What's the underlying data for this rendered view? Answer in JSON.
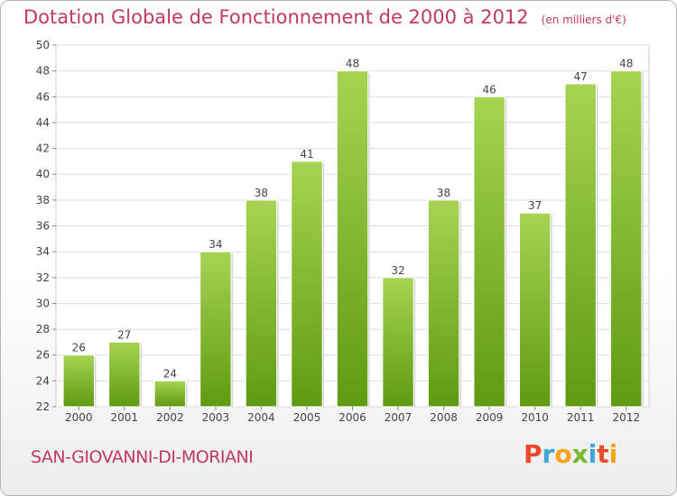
{
  "header": {
    "title": "Dotation Globale de Fonctionnement de 2000 à 2012",
    "unit": "(en milliers d'€)"
  },
  "footer": {
    "commune": "SAN-GIOVANNI-DI-MORIANI",
    "logo_letters": [
      "P",
      "r",
      "o",
      "x",
      "i",
      "t",
      "i"
    ],
    "logo_colors": [
      "#e84b2a",
      "#3ea7d8",
      "#f2a51a",
      "#76b82a",
      "#3ea7d8",
      "#e84b2a",
      "#f2a51a"
    ]
  },
  "colors": {
    "bar_light": "#a6d452",
    "bar_dark": "#5f9a12",
    "accent": "#c0395f",
    "grid": "#dddddd"
  },
  "chart_data": {
    "type": "bar",
    "title": "Dotation Globale de Fonctionnement de 2000 à 2012",
    "subtitle": "(en milliers d'€)",
    "categories": [
      "2000",
      "2001",
      "2002",
      "2003",
      "2004",
      "2005",
      "2006",
      "2007",
      "2008",
      "2009",
      "2010",
      "2011",
      "2012"
    ],
    "values": [
      26,
      27,
      24,
      34,
      38,
      41,
      48,
      32,
      38,
      46,
      37,
      47,
      48
    ],
    "ylim": [
      22,
      50
    ],
    "yticks": [
      22,
      24,
      26,
      28,
      30,
      32,
      34,
      36,
      38,
      40,
      42,
      44,
      46,
      48,
      50
    ],
    "grid": true,
    "xlabel": "",
    "ylabel": ""
  }
}
